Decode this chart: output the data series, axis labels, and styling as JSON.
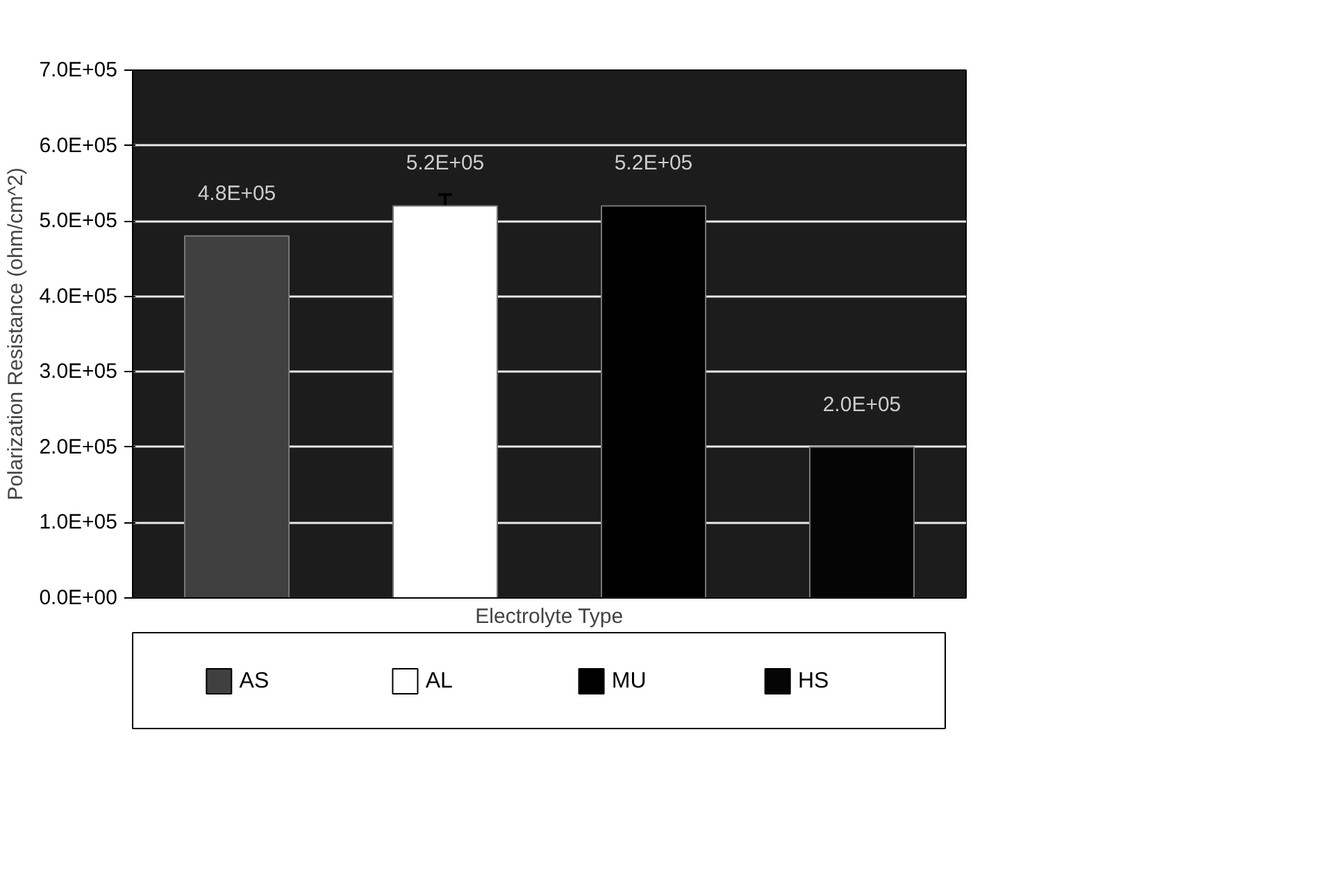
{
  "chart_data": {
    "type": "bar",
    "xlabel": "Electrolyte Type",
    "ylabel": "Polarization Resistance (ohm/cm^2)",
    "categories": [
      null,
      null,
      null,
      null
    ],
    "series": [
      {
        "name": "AS",
        "color": "#404040",
        "values": [
          480000,
          null,
          null,
          null
        ],
        "value_labels": [
          "4.8E+05",
          null,
          null,
          null
        ]
      },
      {
        "name": "AL",
        "color": "#ffffff",
        "values": [
          null,
          520000,
          null,
          null
        ],
        "errors": [
          null,
          15000,
          null,
          null
        ],
        "value_labels": [
          null,
          "5.2E+05",
          null,
          null
        ]
      },
      {
        "name": "MU",
        "color": "#000000",
        "values": [
          null,
          null,
          520000,
          null
        ],
        "value_labels": [
          null,
          null,
          "5.2E+05",
          null
        ]
      },
      {
        "name": "HS",
        "color": "#050505",
        "values": [
          null,
          null,
          null,
          200000
        ],
        "value_labels": [
          null,
          null,
          null,
          "2.0E+05"
        ]
      }
    ],
    "ylim": [
      0,
      700000
    ],
    "yticks": [
      {
        "value": 0,
        "label": "0.0E+00"
      },
      {
        "value": 100000,
        "label": "1.0E+05"
      },
      {
        "value": 200000,
        "label": "2.0E+05"
      },
      {
        "value": 300000,
        "label": "3.0E+05"
      },
      {
        "value": 400000,
        "label": "4.0E+05"
      },
      {
        "value": 500000,
        "label": "5.0E+05"
      },
      {
        "value": 600000,
        "label": "6.0E+05"
      },
      {
        "value": 700000,
        "label": "7.0E+05"
      }
    ],
    "grid": "y",
    "legend": "bottom"
  }
}
